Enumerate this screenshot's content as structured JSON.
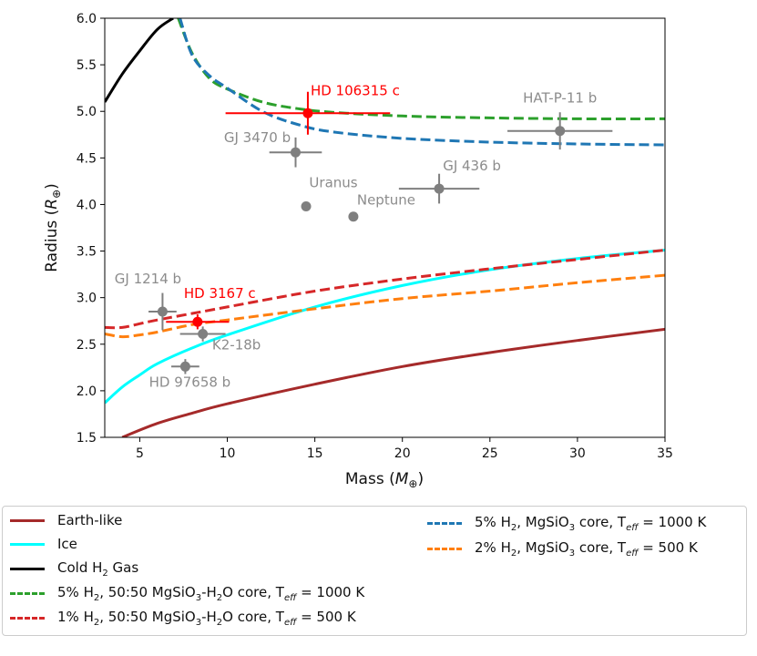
{
  "chart_data": {
    "type": "scatter",
    "title": "",
    "xlabel": "Mass",
    "xlabel_unit": "M",
    "ylabel": "Radius",
    "ylabel_unit": "R",
    "unit_symbol": "⊕",
    "xlim": [
      3,
      35
    ],
    "ylim": [
      1.5,
      6.0
    ],
    "xticks": [
      5,
      10,
      15,
      20,
      25,
      30,
      35
    ],
    "yticks": [
      1.5,
      2.0,
      2.5,
      3.0,
      3.5,
      4.0,
      4.5,
      5.0,
      5.5,
      6.0
    ],
    "xtick_labels": [
      "5",
      "10",
      "15",
      "20",
      "25",
      "30",
      "35"
    ],
    "ytick_labels": [
      "1.5",
      "2.0",
      "2.5",
      "3.0",
      "3.5",
      "4.0",
      "4.5",
      "5.0",
      "5.5",
      "6.0"
    ],
    "grid": false,
    "series": [
      {
        "name": "Earth-like",
        "style": "solid",
        "color": "#a52a2a",
        "x": [
          4,
          6,
          8,
          10,
          15,
          20,
          25,
          30,
          35
        ],
        "y": [
          1.5,
          1.65,
          1.76,
          1.86,
          2.07,
          2.26,
          2.41,
          2.54,
          2.66
        ]
      },
      {
        "name": "Ice",
        "style": "solid",
        "color": "#00ffff",
        "x": [
          3,
          4,
          5,
          6,
          8,
          10,
          15,
          20,
          25,
          30,
          35
        ],
        "y": [
          1.87,
          2.04,
          2.17,
          2.29,
          2.46,
          2.6,
          2.9,
          3.13,
          3.3,
          3.42,
          3.51
        ]
      },
      {
        "name": "Cold H₂ Gas",
        "style": "solid",
        "color": "#000000",
        "x": [
          3,
          4,
          5,
          6,
          6.9
        ],
        "y": [
          5.1,
          5.4,
          5.65,
          5.88,
          6.0
        ]
      },
      {
        "name": "5% H₂, 50:50 MgSiO₃-H₂O core, T_eff = 1000 K",
        "style": "dashed",
        "color": "#2ca02c",
        "x": [
          7.2,
          8,
          9,
          10,
          12,
          14,
          16,
          20,
          25,
          30,
          35
        ],
        "y": [
          6.0,
          5.62,
          5.35,
          5.24,
          5.1,
          5.03,
          4.99,
          4.95,
          4.93,
          4.92,
          4.92
        ]
      },
      {
        "name": "1% H₂, 50:50 MgSiO₃-H₂O core, T_eff = 500 K",
        "style": "dashed",
        "color": "#d62728",
        "x": [
          3,
          4,
          5,
          6,
          8,
          10,
          15,
          20,
          25,
          30,
          35
        ],
        "y": [
          2.68,
          2.68,
          2.72,
          2.76,
          2.83,
          2.9,
          3.07,
          3.2,
          3.31,
          3.41,
          3.51
        ]
      },
      {
        "name": "5% H₂, MgSiO₃ core, T_eff = 1000 K",
        "style": "dashed",
        "color": "#1f77b4",
        "x": [
          7.3,
          8,
          9,
          10,
          12,
          14,
          16,
          20,
          25,
          30,
          35
        ],
        "y": [
          6.0,
          5.6,
          5.38,
          5.25,
          5.0,
          4.86,
          4.78,
          4.71,
          4.67,
          4.65,
          4.64
        ]
      },
      {
        "name": "2% H₂, MgSiO₃ core, T_eff = 500 K",
        "style": "dashed",
        "color": "#ff7f0e",
        "x": [
          3,
          4,
          5,
          6,
          8,
          10,
          15,
          20,
          25,
          30,
          35
        ],
        "y": [
          2.61,
          2.58,
          2.6,
          2.63,
          2.71,
          2.76,
          2.88,
          2.99,
          3.07,
          3.16,
          3.24
        ]
      }
    ],
    "points": [
      {
        "name": "HD 106315 c",
        "mass": 14.6,
        "mass_err": [
          4.7,
          4.7
        ],
        "radius": 4.98,
        "radius_err": [
          0.23,
          0.23
        ],
        "color": "#ff0000",
        "label_color": "#ff0000"
      },
      {
        "name": "HD 3167 c",
        "mass": 8.3,
        "mass_err": [
          1.8,
          1.8
        ],
        "radius": 2.74,
        "radius_err": [
          0.08,
          0.08
        ],
        "color": "#ff0000",
        "label_color": "#ff0000"
      },
      {
        "name": "HAT-P-11 b",
        "mass": 29.0,
        "mass_err": [
          3.0,
          3.0
        ],
        "radius": 4.79,
        "radius_err": [
          0.2,
          0.2
        ],
        "color": "#7f7f7f",
        "label_color": "#8c8c8c"
      },
      {
        "name": "GJ 3470 b",
        "mass": 13.9,
        "mass_err": [
          1.5,
          1.5
        ],
        "radius": 4.56,
        "radius_err": [
          0.16,
          0.16
        ],
        "color": "#7f7f7f",
        "label_color": "#8c8c8c"
      },
      {
        "name": "GJ 436 b",
        "mass": 22.1,
        "mass_err": [
          2.3,
          2.3
        ],
        "radius": 4.17,
        "radius_err": [
          0.16,
          0.16
        ],
        "color": "#7f7f7f",
        "label_color": "#8c8c8c"
      },
      {
        "name": "Uranus",
        "mass": 14.5,
        "mass_err": [
          0,
          0
        ],
        "radius": 3.98,
        "radius_err": [
          0,
          0
        ],
        "color": "#7f7f7f",
        "label_color": "#8c8c8c"
      },
      {
        "name": "Neptune",
        "mass": 17.2,
        "mass_err": [
          0,
          0
        ],
        "radius": 3.87,
        "radius_err": [
          0,
          0
        ],
        "color": "#7f7f7f",
        "label_color": "#8c8c8c"
      },
      {
        "name": "GJ 1214 b",
        "mass": 6.3,
        "mass_err": [
          0.8,
          0.8
        ],
        "radius": 2.85,
        "radius_err": [
          0.2,
          0.2
        ],
        "color": "#7f7f7f",
        "label_color": "#8c8c8c"
      },
      {
        "name": "K2-18b",
        "mass": 8.6,
        "mass_err": [
          1.3,
          1.3
        ],
        "radius": 2.61,
        "radius_err": [
          0.08,
          0.08
        ],
        "color": "#7f7f7f",
        "label_color": "#8c8c8c"
      },
      {
        "name": "HD 97658 b",
        "mass": 7.6,
        "mass_err": [
          0.8,
          0.8
        ],
        "radius": 2.26,
        "radius_err": [
          0.08,
          0.08
        ],
        "color": "#7f7f7f",
        "label_color": "#8c8c8c"
      }
    ],
    "legend_position": "below"
  },
  "legend": {
    "items": [
      {
        "color": "#a52a2a",
        "style": "solid",
        "pre": "Earth-like",
        "sub1": "",
        "mid": "",
        "sub2": "",
        "post": "",
        "subscript_eff": false,
        "tail": ""
      },
      {
        "color": "#00ffff",
        "style": "solid",
        "pre": "Ice",
        "sub1": "",
        "mid": "",
        "sub2": "",
        "post": "",
        "subscript_eff": false,
        "tail": ""
      },
      {
        "color": "#000000",
        "style": "solid",
        "pre": "Cold H",
        "sub1": "2",
        "mid": " Gas",
        "sub2": "",
        "post": "",
        "subscript_eff": false,
        "tail": ""
      },
      {
        "color": "#2ca02c",
        "style": "dashed",
        "pre": "5% H",
        "sub1": "2",
        "mid": ", 50:50 MgSiO",
        "sub2": "3",
        "post": "-H",
        "sub3": "2",
        "post2": "O core, T",
        "subscript_eff": true,
        "tail": " = 1000 K"
      },
      {
        "color": "#d62728",
        "style": "dashed",
        "pre": "1% H",
        "sub1": "2",
        "mid": ", 50:50 MgSiO",
        "sub2": "3",
        "post": "-H",
        "sub3": "2",
        "post2": "O core, T",
        "subscript_eff": true,
        "tail": " = 500 K"
      },
      {
        "color": "#1f77b4",
        "style": "dashed",
        "pre": "5% H",
        "sub1": "2",
        "mid": ", MgSiO",
        "sub2": "3",
        "post": " core, T",
        "sub3": "",
        "post2": "",
        "subscript_eff": true,
        "tail": " = 1000 K"
      },
      {
        "color": "#ff7f0e",
        "style": "dashed",
        "pre": "2% H",
        "sub1": "2",
        "mid": ", MgSiO",
        "sub2": "3",
        "post": " core, T",
        "sub3": "",
        "post2": "",
        "subscript_eff": true,
        "tail": " = 500 K"
      }
    ],
    "eff_label": "eff"
  }
}
